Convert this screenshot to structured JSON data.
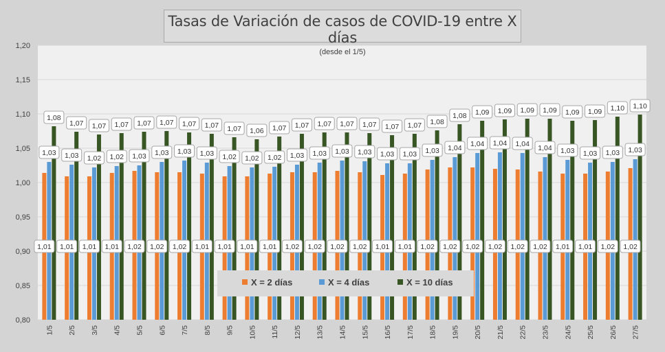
{
  "chart_data": {
    "type": "bar",
    "title": "Tasas de Variación de casos de COVID-19 entre X días",
    "subtitle": "(desde el 1/5)",
    "xlabel": "",
    "ylabel": "",
    "ylim": [
      0.8,
      1.2
    ],
    "yticks": [
      "0,80",
      "0,85",
      "0,90",
      "0,95",
      "1,00",
      "1,05",
      "1,10",
      "1,15",
      "1,20"
    ],
    "grid": true,
    "legend_position": "bottom-center",
    "categories": [
      "1/5",
      "2/5",
      "3/5",
      "4/5",
      "5/5",
      "6/5",
      "7/5",
      "8/5",
      "9/5",
      "10/5",
      "11/5",
      "12/5",
      "13/5",
      "14/5",
      "15/5",
      "16/5",
      "17/5",
      "18/5",
      "19/5",
      "20/5",
      "21/5",
      "22/5",
      "23/5",
      "24/5",
      "25/5",
      "26/5",
      "27/5"
    ],
    "series": [
      {
        "name": "X = 2 días",
        "color": "#ed7d31",
        "values": [
          1.014,
          1.009,
          1.009,
          1.014,
          1.017,
          1.015,
          1.015,
          1.013,
          1.009,
          1.009,
          1.013,
          1.015,
          1.015,
          1.017,
          1.015,
          1.011,
          1.013,
          1.019,
          1.022,
          1.022,
          1.02,
          1.019,
          1.016,
          1.013,
          1.013,
          1.016,
          1.021
        ],
        "labels": [
          "1,01",
          "1,01",
          "1,01",
          "1,01",
          "1,02",
          "1,02",
          "1,02",
          "1,01",
          "1,01",
          "1,01",
          "1,01",
          "1,02",
          "1,02",
          "1,02",
          "1,02",
          "1,01",
          "1,01",
          "1,02",
          "1,02",
          "1,02",
          "1,02",
          "1,02",
          "1,02",
          "1,01",
          "1,01",
          "1,02",
          "1,02"
        ]
      },
      {
        "name": "X = 4 días",
        "color": "#5b9bd5",
        "values": [
          1.03,
          1.026,
          1.022,
          1.024,
          1.025,
          1.03,
          1.032,
          1.029,
          1.024,
          1.022,
          1.023,
          1.026,
          1.029,
          1.032,
          1.031,
          1.028,
          1.028,
          1.033,
          1.037,
          1.043,
          1.044,
          1.043,
          1.037,
          1.033,
          1.029,
          1.03,
          1.034
        ],
        "labels": [
          "1,03",
          "1,03",
          "1,02",
          "1,02",
          "1,03",
          "1,03",
          "1,03",
          "1,03",
          "1,02",
          "1,02",
          "1,02",
          "1,03",
          "1,03",
          "1,03",
          "1,03",
          "1,03",
          "1,03",
          "1,03",
          "1,04",
          "1,04",
          "1,04",
          "1,04",
          "1,04",
          "1,03",
          "1,03",
          "1,03",
          "1,03"
        ]
      },
      {
        "name": "X = 10 días",
        "color": "#375623",
        "values": [
          1.082,
          1.074,
          1.07,
          1.072,
          1.074,
          1.075,
          1.073,
          1.071,
          1.066,
          1.063,
          1.067,
          1.071,
          1.073,
          1.073,
          1.072,
          1.069,
          1.071,
          1.076,
          1.085,
          1.09,
          1.092,
          1.093,
          1.093,
          1.09,
          1.091,
          1.096,
          1.099
        ],
        "labels": [
          "1,08",
          "1,07",
          "1,07",
          "1,07",
          "1,07",
          "1,07",
          "1,07",
          "1,07",
          "1,07",
          "1,06",
          "1,07",
          "1,07",
          "1,07",
          "1,07",
          "1,07",
          "1,07",
          "1,07",
          "1,08",
          "1,08",
          "1,09",
          "1,09",
          "1,09",
          "1,09",
          "1,09",
          "1,09",
          "1,10",
          "1,10"
        ]
      }
    ]
  }
}
